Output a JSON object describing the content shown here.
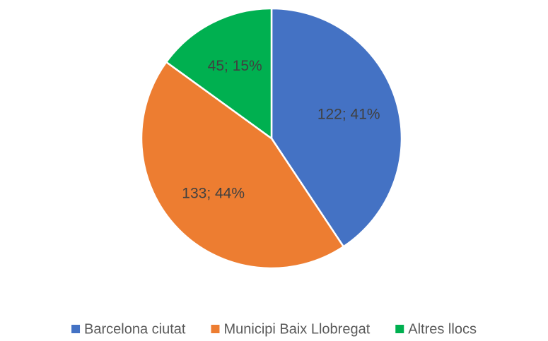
{
  "chart_data": {
    "type": "pie",
    "categories": [
      "Barcelona ciutat",
      "Municipi Baix Llobregat",
      "Altres llocs"
    ],
    "values": [
      122,
      133,
      45
    ],
    "value_labels": [
      "122; 41%",
      "133; 44%",
      "45; 15%"
    ],
    "colors": [
      "#4472c4",
      "#ed7d31",
      "#00b050"
    ],
    "legend": "bottom"
  }
}
